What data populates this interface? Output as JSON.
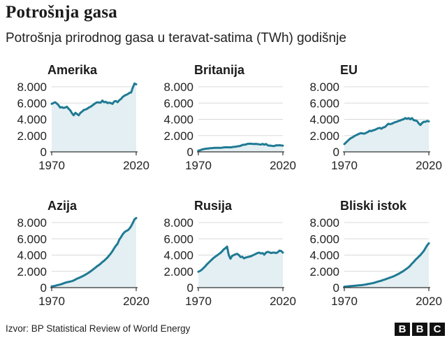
{
  "header": {
    "title": "Potrošnja gasa",
    "subtitle": "Potrošnja prirodnog gasa u teravat-satima (TWh) godišnje"
  },
  "footer": {
    "source": "Izvor: BP Statistical Review of World Energy",
    "logo_letters": [
      "B",
      "B",
      "C"
    ]
  },
  "colors": {
    "line": "#1f7a94",
    "area": "#e3eff2",
    "grid": "#d9d9d9",
    "axis": "#333333"
  },
  "chart_data": [
    {
      "type": "area",
      "title": "Amerika",
      "xlim": [
        1970,
        2020
      ],
      "ylim": [
        0,
        8000
      ],
      "yticks": [
        0,
        2000,
        4000,
        6000,
        8000
      ],
      "ytick_labels": [
        "0",
        "2.000",
        "4.000",
        "6.000",
        "8.000"
      ],
      "xtick_labels": [
        "1970",
        "2020"
      ],
      "x": [
        1970,
        1971,
        1972,
        1973,
        1974,
        1975,
        1976,
        1977,
        1978,
        1979,
        1980,
        1981,
        1982,
        1983,
        1984,
        1985,
        1986,
        1987,
        1988,
        1989,
        1990,
        1991,
        1992,
        1993,
        1994,
        1995,
        1996,
        1997,
        1998,
        1999,
        2000,
        2001,
        2002,
        2003,
        2004,
        2005,
        2006,
        2007,
        2008,
        2009,
        2010,
        2011,
        2012,
        2013,
        2014,
        2015,
        2016,
        2017,
        2018,
        2019,
        2020
      ],
      "y": [
        5900,
        6000,
        6100,
        5950,
        5750,
        5450,
        5500,
        5400,
        5450,
        5550,
        5300,
        5100,
        4750,
        4500,
        4800,
        4650,
        4500,
        4800,
        4950,
        5150,
        5200,
        5300,
        5450,
        5550,
        5700,
        5850,
        6000,
        6100,
        6050,
        6050,
        6300,
        6100,
        6150,
        6000,
        6050,
        6000,
        5900,
        6200,
        6250,
        6100,
        6350,
        6500,
        6750,
        6900,
        7000,
        7100,
        7250,
        7300,
        7900,
        8400,
        8300
      ]
    },
    {
      "type": "area",
      "title": "Britanija",
      "xlim": [
        1970,
        2020
      ],
      "ylim": [
        0,
        8000
      ],
      "yticks": [
        0,
        2000,
        4000,
        6000,
        8000
      ],
      "ytick_labels": [
        "0",
        "2.000",
        "4.000",
        "6.000",
        "8.000"
      ],
      "xtick_labels": [
        "1970",
        "2020"
      ],
      "x": [
        1970,
        1971,
        1972,
        1973,
        1974,
        1975,
        1976,
        1977,
        1978,
        1979,
        1980,
        1981,
        1982,
        1983,
        1984,
        1985,
        1986,
        1987,
        1988,
        1989,
        1990,
        1991,
        1992,
        1993,
        1994,
        1995,
        1996,
        1997,
        1998,
        1999,
        2000,
        2001,
        2002,
        2003,
        2004,
        2005,
        2006,
        2007,
        2008,
        2009,
        2010,
        2011,
        2012,
        2013,
        2014,
        2015,
        2016,
        2017,
        2018,
        2019,
        2020
      ],
      "y": [
        150,
        200,
        280,
        330,
        380,
        400,
        420,
        450,
        460,
        480,
        490,
        500,
        490,
        500,
        510,
        550,
        560,
        570,
        560,
        550,
        580,
        620,
        620,
        680,
        700,
        740,
        850,
        870,
        900,
        980,
        1000,
        1000,
        980,
        970,
        980,
        960,
        920,
        900,
        980,
        880,
        970,
        810,
        760,
        760,
        720,
        720,
        810,
        800,
        820,
        790,
        760
      ]
    },
    {
      "type": "area",
      "title": "EU",
      "xlim": [
        1970,
        2020
      ],
      "ylim": [
        0,
        8000
      ],
      "yticks": [
        0,
        2000,
        4000,
        6000,
        8000
      ],
      "ytick_labels": [
        "0",
        "2.000",
        "4.000",
        "6.000",
        "8.000"
      ],
      "xtick_labels": [
        "1970",
        "2020"
      ],
      "x": [
        1970,
        1971,
        1972,
        1973,
        1974,
        1975,
        1976,
        1977,
        1978,
        1979,
        1980,
        1981,
        1982,
        1983,
        1984,
        1985,
        1986,
        1987,
        1988,
        1989,
        1990,
        1991,
        1992,
        1993,
        1994,
        1995,
        1996,
        1997,
        1998,
        1999,
        2000,
        2001,
        2002,
        2003,
        2004,
        2005,
        2006,
        2007,
        2008,
        2009,
        2010,
        2011,
        2012,
        2013,
        2014,
        2015,
        2016,
        2017,
        2018,
        2019,
        2020
      ],
      "y": [
        950,
        1150,
        1350,
        1550,
        1700,
        1800,
        1950,
        2050,
        2150,
        2250,
        2300,
        2250,
        2250,
        2350,
        2450,
        2600,
        2550,
        2650,
        2700,
        2800,
        2900,
        2950,
        2850,
        3000,
        3050,
        3250,
        3450,
        3400,
        3450,
        3550,
        3650,
        3700,
        3800,
        3850,
        3950,
        4000,
        4150,
        4050,
        4150,
        4000,
        4150,
        3900,
        3850,
        3800,
        3500,
        3300,
        3550,
        3700,
        3700,
        3800,
        3750
      ]
    },
    {
      "type": "area",
      "title": "Azija",
      "xlim": [
        1970,
        2020
      ],
      "ylim": [
        0,
        8000
      ],
      "yticks": [
        0,
        2000,
        4000,
        6000,
        8000
      ],
      "ytick_labels": [
        "0",
        "2.000",
        "4.000",
        "6.000",
        "8.000"
      ],
      "xtick_labels": [
        "1970",
        "2020"
      ],
      "x": [
        1970,
        1971,
        1972,
        1973,
        1974,
        1975,
        1976,
        1977,
        1978,
        1979,
        1980,
        1981,
        1982,
        1983,
        1984,
        1985,
        1986,
        1987,
        1988,
        1989,
        1990,
        1991,
        1992,
        1993,
        1994,
        1995,
        1996,
        1997,
        1998,
        1999,
        2000,
        2001,
        2002,
        2003,
        2004,
        2005,
        2006,
        2007,
        2008,
        2009,
        2010,
        2011,
        2012,
        2013,
        2014,
        2015,
        2016,
        2017,
        2018,
        2019,
        2020
      ],
      "y": [
        150,
        180,
        220,
        280,
        330,
        380,
        450,
        520,
        600,
        660,
        700,
        750,
        800,
        880,
        990,
        1100,
        1180,
        1280,
        1380,
        1480,
        1600,
        1720,
        1850,
        2000,
        2150,
        2320,
        2480,
        2650,
        2780,
        2950,
        3150,
        3300,
        3500,
        3700,
        3950,
        4200,
        4500,
        4850,
        5150,
        5400,
        5900,
        6200,
        6550,
        6800,
        6950,
        7050,
        7250,
        7550,
        7950,
        8400,
        8550
      ]
    },
    {
      "type": "area",
      "title": "Rusija",
      "xlim": [
        1970,
        2020
      ],
      "ylim": [
        0,
        8000
      ],
      "yticks": [
        0,
        2000,
        4000,
        6000,
        8000
      ],
      "ytick_labels": [
        "0",
        "2.000",
        "4.000",
        "6.000",
        "8.000"
      ],
      "xtick_labels": [
        "1970",
        "2020"
      ],
      "x": [
        1970,
        1971,
        1972,
        1973,
        1974,
        1975,
        1976,
        1977,
        1978,
        1979,
        1980,
        1981,
        1982,
        1983,
        1984,
        1985,
        1986,
        1987,
        1988,
        1989,
        1990,
        1991,
        1992,
        1993,
        1994,
        1995,
        1996,
        1997,
        1998,
        1999,
        2000,
        2001,
        2002,
        2003,
        2004,
        2005,
        2006,
        2007,
        2008,
        2009,
        2010,
        2011,
        2012,
        2013,
        2014,
        2015,
        2016,
        2017,
        2018,
        2019,
        2020
      ],
      "y": [
        1950,
        2050,
        2200,
        2400,
        2600,
        2850,
        3050,
        3250,
        3450,
        3650,
        3800,
        3950,
        4100,
        4250,
        4450,
        4700,
        4850,
        5050,
        4000,
        3550,
        3900,
        4000,
        4100,
        4150,
        4000,
        3750,
        3800,
        3600,
        3700,
        3750,
        3800,
        3850,
        3950,
        4050,
        4150,
        4250,
        4300,
        4200,
        4250,
        4050,
        4300,
        4400,
        4350,
        4250,
        4300,
        4300,
        4250,
        4350,
        4550,
        4500,
        4300
      ]
    },
    {
      "type": "area",
      "title": "Bliski istok",
      "xlim": [
        1970,
        2020
      ],
      "ylim": [
        0,
        8000
      ],
      "yticks": [
        0,
        2000,
        4000,
        6000,
        8000
      ],
      "ytick_labels": [
        "0",
        "2.000",
        "4.000",
        "6.000",
        "8.000"
      ],
      "xtick_labels": [
        "1970",
        "2020"
      ],
      "x": [
        1970,
        1971,
        1972,
        1973,
        1974,
        1975,
        1976,
        1977,
        1978,
        1979,
        1980,
        1981,
        1982,
        1983,
        1984,
        1985,
        1986,
        1987,
        1988,
        1989,
        1990,
        1991,
        1992,
        1993,
        1994,
        1995,
        1996,
        1997,
        1998,
        1999,
        2000,
        2001,
        2002,
        2003,
        2004,
        2005,
        2006,
        2007,
        2008,
        2009,
        2010,
        2011,
        2012,
        2013,
        2014,
        2015,
        2016,
        2017,
        2018,
        2019,
        2020
      ],
      "y": [
        120,
        130,
        150,
        170,
        190,
        210,
        230,
        250,
        270,
        290,
        300,
        330,
        360,
        400,
        440,
        480,
        520,
        560,
        620,
        680,
        750,
        800,
        860,
        940,
        1000,
        1080,
        1150,
        1230,
        1300,
        1380,
        1480,
        1580,
        1680,
        1800,
        1920,
        2050,
        2200,
        2350,
        2500,
        2700,
        2950,
        3150,
        3400,
        3600,
        3800,
        4000,
        4250,
        4500,
        4850,
        5200,
        5450
      ]
    }
  ]
}
